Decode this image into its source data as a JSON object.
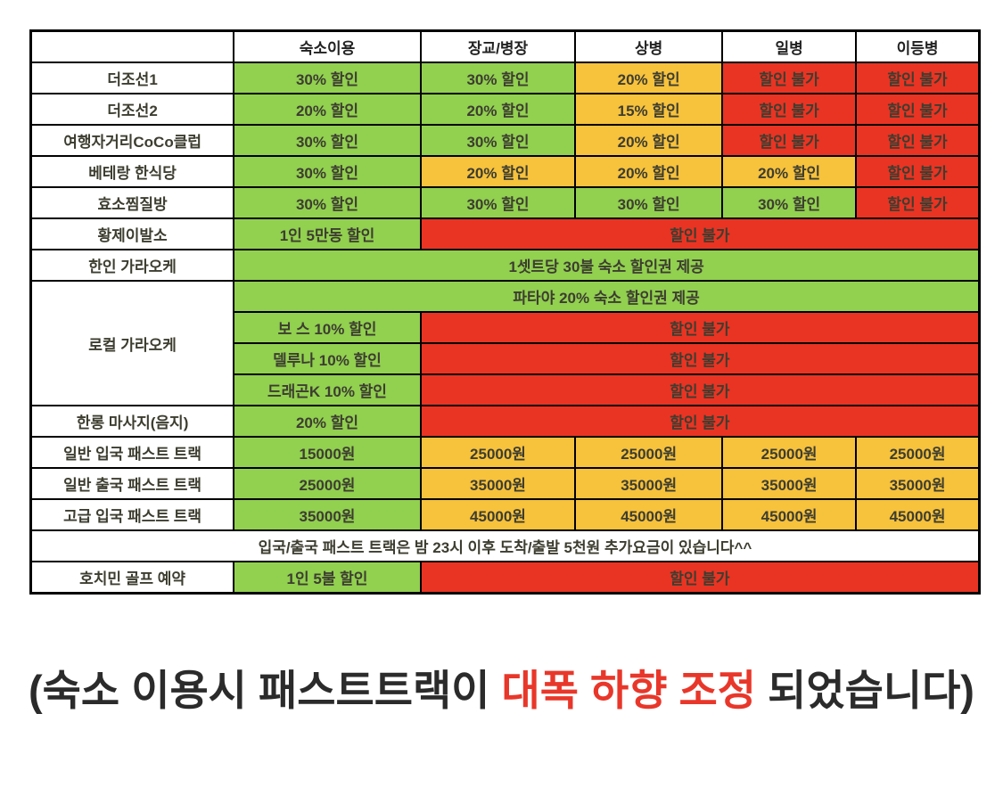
{
  "colors": {
    "green": "#92d050",
    "orange": "#f7c23c",
    "red": "#e93423",
    "red_cell_text": "#8b1e10",
    "notice_text": "#f7402f",
    "caption_red": "#e8372a",
    "label_text": "#141414",
    "cell_text": "#3d3d30",
    "border": "#000000"
  },
  "table": {
    "columns": [
      "",
      "숙소이용",
      "장교/병장",
      "상병",
      "일병",
      "이등병"
    ],
    "rows": [
      {
        "label": {
          "text": "더조선1"
        },
        "cells": [
          {
            "text": "30% 할인",
            "bg": "green"
          },
          {
            "text": "30% 할인",
            "bg": "green"
          },
          {
            "text": "20% 할인",
            "bg": "orange"
          },
          {
            "text": "할인 불가",
            "bg": "red"
          },
          {
            "text": "할인 불가",
            "bg": "red"
          }
        ]
      },
      {
        "label": {
          "text": "더조선2"
        },
        "cells": [
          {
            "text": "20% 할인",
            "bg": "green"
          },
          {
            "text": "20% 할인",
            "bg": "green"
          },
          {
            "text": "15% 할인",
            "bg": "orange"
          },
          {
            "text": "할인 불가",
            "bg": "red"
          },
          {
            "text": "할인 불가",
            "bg": "red"
          }
        ]
      },
      {
        "label": {
          "text": "여행자거리CoCo클럽"
        },
        "cells": [
          {
            "text": "30% 할인",
            "bg": "green"
          },
          {
            "text": "30% 할인",
            "bg": "green"
          },
          {
            "text": "20% 할인",
            "bg": "orange"
          },
          {
            "text": "할인 불가",
            "bg": "red"
          },
          {
            "text": "할인 불가",
            "bg": "red"
          }
        ]
      },
      {
        "label": {
          "text": "베테랑 한식당"
        },
        "cells": [
          {
            "text": "30% 할인",
            "bg": "green"
          },
          {
            "text": "20% 할인",
            "bg": "orange"
          },
          {
            "text": "20% 할인",
            "bg": "orange"
          },
          {
            "text": "20% 할인",
            "bg": "orange"
          },
          {
            "text": "할인 불가",
            "bg": "red"
          }
        ]
      },
      {
        "label": {
          "text": "효소찜질방"
        },
        "cells": [
          {
            "text": "30% 할인",
            "bg": "green"
          },
          {
            "text": "30% 할인",
            "bg": "green"
          },
          {
            "text": "30% 할인",
            "bg": "green"
          },
          {
            "text": "30% 할인",
            "bg": "green"
          },
          {
            "text": "할인 불가",
            "bg": "red"
          }
        ]
      },
      {
        "label": {
          "text": "황제이발소"
        },
        "cells": [
          {
            "text": "1인 5만동 할인",
            "bg": "green"
          },
          {
            "text": "할인 불가",
            "bg": "red",
            "colspan": 4
          }
        ]
      },
      {
        "label": {
          "text": "한인 가라오케"
        },
        "cells": [
          {
            "text": "1셋트당 30불 숙소 할인권 제공",
            "bg": "green",
            "colspan": 5
          }
        ]
      },
      {
        "label": {
          "text": "로컬 가라오케",
          "rowspan": 4
        },
        "cells": [
          {
            "text": "파타야 20% 숙소 할인권 제공",
            "bg": "green",
            "colspan": 5
          }
        ]
      },
      {
        "cells": [
          {
            "text": "보 스 10% 할인",
            "bg": "green"
          },
          {
            "text": "할인 불가",
            "bg": "red",
            "colspan": 4
          }
        ]
      },
      {
        "cells": [
          {
            "text": "델루나 10% 할인",
            "bg": "green"
          },
          {
            "text": "할인 불가",
            "bg": "red",
            "colspan": 4
          }
        ]
      },
      {
        "cells": [
          {
            "text": "드래곤K 10% 할인",
            "bg": "green"
          },
          {
            "text": "할인 불가",
            "bg": "red",
            "colspan": 4
          }
        ]
      },
      {
        "label": {
          "text": "한롱 마사지(음지)"
        },
        "cells": [
          {
            "text": "20% 할인",
            "bg": "green"
          },
          {
            "text": "할인 불가",
            "bg": "red",
            "colspan": 4
          }
        ]
      },
      {
        "label": {
          "text": "일반 입국 패스트 트랙"
        },
        "cells": [
          {
            "text": "15000원",
            "bg": "green"
          },
          {
            "text": "25000원",
            "bg": "orange"
          },
          {
            "text": "25000원",
            "bg": "orange"
          },
          {
            "text": "25000원",
            "bg": "orange"
          },
          {
            "text": "25000원",
            "bg": "orange"
          }
        ]
      },
      {
        "label": {
          "text": "일반 출국 패스트 트랙"
        },
        "cells": [
          {
            "text": "25000원",
            "bg": "green"
          },
          {
            "text": "35000원",
            "bg": "orange"
          },
          {
            "text": "35000원",
            "bg": "orange"
          },
          {
            "text": "35000원",
            "bg": "orange"
          },
          {
            "text": "35000원",
            "bg": "orange"
          }
        ]
      },
      {
        "label": {
          "text": "고급 입국 패스트 트랙"
        },
        "cells": [
          {
            "text": "35000원",
            "bg": "green"
          },
          {
            "text": "45000원",
            "bg": "orange"
          },
          {
            "text": "45000원",
            "bg": "orange"
          },
          {
            "text": "45000원",
            "bg": "orange"
          },
          {
            "text": "45000원",
            "bg": "orange"
          }
        ]
      },
      {
        "cells": [
          {
            "text": "입국/출국 패스트 트랙은 밤 23시 이후 도착/출발 5천원 추가요금이 있습니다^^",
            "bg": "notice",
            "colspan": 6
          }
        ]
      },
      {
        "label": {
          "text": "호치민 골프 예약"
        },
        "cells": [
          {
            "text": "1인 5불 할인",
            "bg": "green"
          },
          {
            "text": "할인 불가",
            "bg": "red",
            "colspan": 4
          }
        ]
      }
    ]
  },
  "caption": {
    "prefix": "(숙소 이용시 패스트트랙이 ",
    "highlight": "대폭 하향 조정",
    "suffix": " 되었습니다)"
  }
}
